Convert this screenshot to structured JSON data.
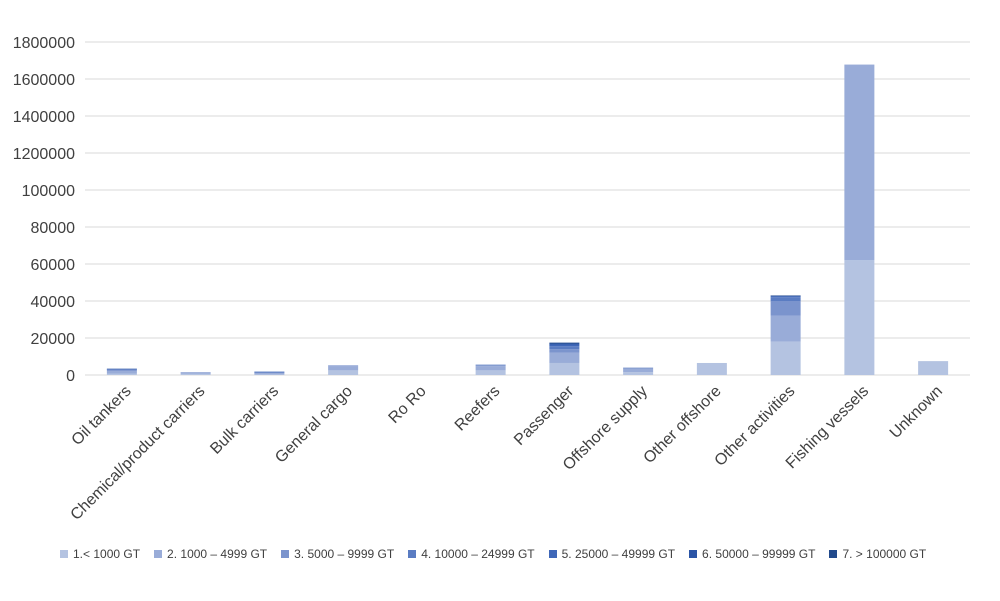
{
  "chart_data": {
    "type": "bar",
    "stacked": true,
    "categories": [
      "Oil tankers",
      "Chemical/product carriers",
      "Bulk carriers",
      "General cargo",
      "Ro Ro",
      "Reefers",
      "Passenger",
      "Offshore supply",
      "Other offshore",
      "Other activities",
      "Fishing vessels",
      "Unknown"
    ],
    "y_tick_labels": [
      "0",
      "20000",
      "40000",
      "60000",
      "80000",
      "100000",
      "1200000",
      "1400000",
      "1600000",
      "1800000"
    ],
    "series": [
      {
        "name": "1.< 1000 GT",
        "color": "#b4c3e1",
        "values": [
          800,
          600,
          300,
          2500,
          0,
          2500,
          6500,
          1500,
          6500,
          18000,
          62000,
          7500
        ]
      },
      {
        "name": "2. 1000 – 4999 GT",
        "color": "#99acd8",
        "values": [
          1400,
          700,
          600,
          2200,
          0,
          2300,
          5500,
          2000,
          0,
          14000,
          1616000,
          0
        ]
      },
      {
        "name": "3. 5000 – 9999 GT",
        "color": "#7b94cd",
        "values": [
          600,
          200,
          500,
          500,
          0,
          500,
          2000,
          500,
          0,
          8000,
          0,
          0
        ]
      },
      {
        "name": "4. 10000 – 24999 GT",
        "color": "#5a7cc2",
        "values": [
          300,
          0,
          300,
          0,
          0,
          300,
          1500,
          0,
          0,
          2000,
          0,
          0
        ]
      },
      {
        "name": "5. 25000 – 49999 GT",
        "color": "#3f67b8",
        "values": [
          200,
          0,
          100,
          0,
          0,
          0,
          1000,
          0,
          0,
          500,
          0,
          0
        ]
      },
      {
        "name": "6. 50000 – 99999 GT",
        "color": "#2b55a6",
        "values": [
          100,
          0,
          0,
          0,
          0,
          0,
          500,
          0,
          0,
          300,
          0,
          0
        ]
      },
      {
        "name": "7. > 100000 GT",
        "color": "#224a8c",
        "values": [
          0,
          0,
          0,
          0,
          0,
          0,
          500,
          0,
          0,
          200,
          0,
          0
        ]
      }
    ],
    "ylabel": "",
    "xlabel": "",
    "title": "",
    "grid": true,
    "legend_position": "bottom"
  }
}
